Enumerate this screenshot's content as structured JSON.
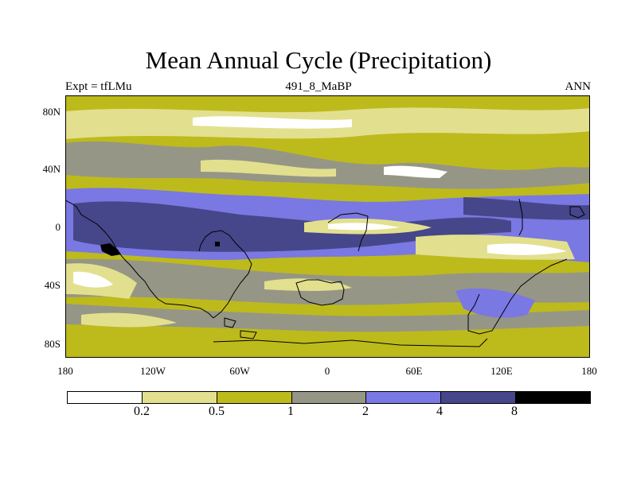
{
  "title": "Mean Annual Cycle (Precipitation)",
  "subtitle_left": "Expt = tfLMu",
  "subtitle_center": "491_8_MaBP",
  "subtitle_right": "ANN",
  "y_ticks": [
    "80N",
    "40N",
    "0",
    "40S",
    "80S"
  ],
  "x_ticks": [
    "180",
    "120W",
    "60W",
    "0",
    "60E",
    "120E",
    "180"
  ],
  "colors": {
    "c0": "#ffffff",
    "c1": "#e2e08e",
    "c2": "#bdba1c",
    "c3": "#969686",
    "c4": "#7a78e2",
    "c5": "#46468a",
    "c6": "#000000"
  },
  "colorbar": {
    "colors": [
      "#ffffff",
      "#e2e08e",
      "#bdba1c",
      "#969686",
      "#7a78e2",
      "#46468a",
      "#000000"
    ],
    "labels": [
      "0.2",
      "0.5",
      "1",
      "2",
      "4",
      "8"
    ]
  }
}
